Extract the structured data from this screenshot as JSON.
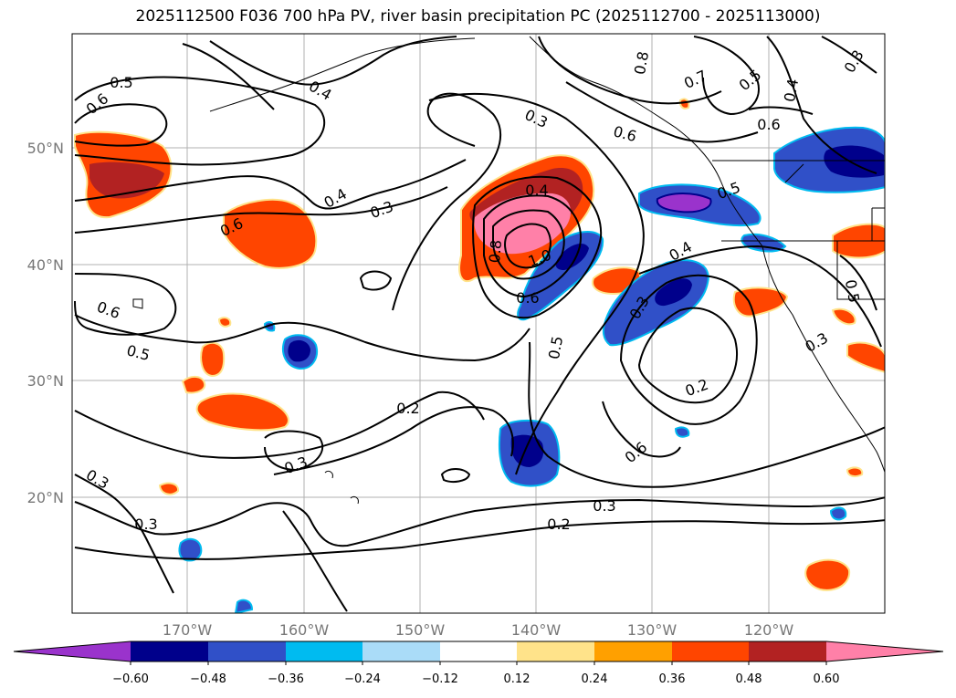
{
  "title": "2025112500 F036 700 hPa PV, river basin precipitation PC (2025112700 - 2025113000)",
  "map": {
    "lat_ticks": [
      "50°N",
      "40°N",
      "30°N",
      "20°N"
    ],
    "lon_ticks": [
      "170°W",
      "160°W",
      "150°W",
      "140°W",
      "130°W",
      "120°W"
    ],
    "contour_labels": [
      "0.5",
      "0.6",
      "0.4",
      "0.6",
      "0.4",
      "0.3",
      "0.3",
      "0.4",
      "0.8",
      "1.0",
      "0.6",
      "0.6",
      "0.5",
      "0.3",
      "0.2",
      "0.2",
      "0.3",
      "0.2",
      "0.3",
      "0.3",
      "0.6",
      "0.5",
      "0.4",
      "0.6",
      "0.7",
      "0.5",
      "0.6",
      "0.4",
      "0.3",
      "0.5",
      "0.8",
      "0.3",
      "0.3",
      "0.5"
    ],
    "colors": {
      "neg_060": "#9a33cc",
      "neg_048": "#00008b",
      "neg_036": "#3050c8",
      "neg_024": "#00bbf0",
      "neg_012": "#aadcf8",
      "neutral": "#ffffff",
      "pos_012": "#ffe38a",
      "pos_024": "#ffa000",
      "pos_036": "#ff4500",
      "pos_048": "#b22222",
      "pos_060": "#ff80a8"
    }
  },
  "colorbar": {
    "tick_labels": [
      "−0.60",
      "−0.48",
      "−0.36",
      "−0.24",
      "−0.12",
      "0.12",
      "0.24",
      "0.36",
      "0.48",
      "0.60"
    ],
    "colors": [
      "#9a33cc",
      "#00008b",
      "#3050c8",
      "#00bbf0",
      "#aadcf8",
      "#ffffff",
      "#ffe38a",
      "#ffa000",
      "#ff4500",
      "#b22222",
      "#ff80a8"
    ]
  }
}
